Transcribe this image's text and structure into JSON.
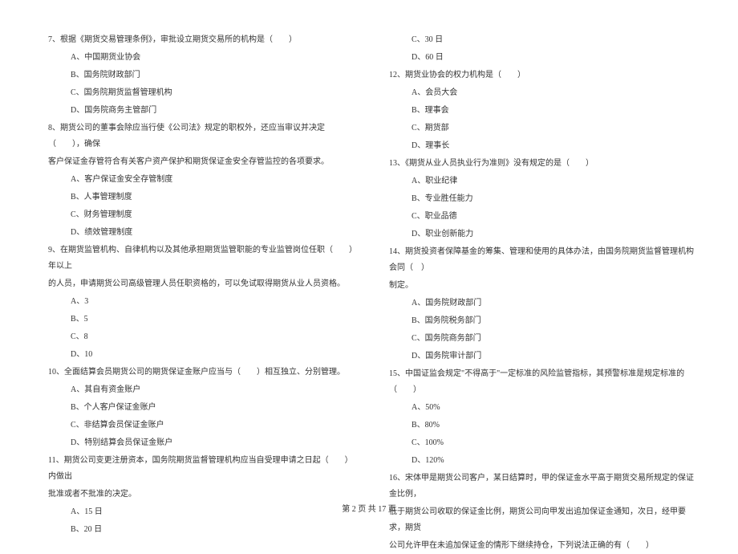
{
  "font_size": 10,
  "text_color": "#333333",
  "background_color": "#ffffff",
  "line_height": 2.0,
  "left_column": {
    "items": [
      {
        "type": "q",
        "text": "7、根据《期货交易管理条例》，审批设立期货交易所的机构是（　　）"
      },
      {
        "type": "o",
        "text": "A、中国期货业协会"
      },
      {
        "type": "o",
        "text": "B、国务院财政部门"
      },
      {
        "type": "o",
        "text": "C、国务院期货监督管理机构"
      },
      {
        "type": "o",
        "text": "D、国务院商务主管部门"
      },
      {
        "type": "q",
        "text": "8、期货公司的董事会除应当行使《公司法》规定的职权外，还应当审议并决定（　　），确保"
      },
      {
        "type": "q",
        "text": "客户保证金存管符合有关客户资产保护和期货保证金安全存管监控的各项要求。"
      },
      {
        "type": "o",
        "text": "A、客户保证金安全存管制度"
      },
      {
        "type": "o",
        "text": "B、人事管理制度"
      },
      {
        "type": "o",
        "text": "C、财务管理制度"
      },
      {
        "type": "o",
        "text": "D、绩效管理制度"
      },
      {
        "type": "q",
        "text": "9、在期货监管机构、自律机构以及其他承担期货监管职能的专业监管岗位任职（　　）年以上"
      },
      {
        "type": "q",
        "text": "的人员，申请期货公司高级管理人员任职资格的，可以免试取得期货从业人员资格。"
      },
      {
        "type": "o",
        "text": "A、3"
      },
      {
        "type": "o",
        "text": "B、5"
      },
      {
        "type": "o",
        "text": "C、8"
      },
      {
        "type": "o",
        "text": "D、10"
      },
      {
        "type": "q",
        "text": "10、全面结算会员期货公司的期货保证金账户应当与（　　）相互独立、分别管理。"
      },
      {
        "type": "o",
        "text": "A、其自有资金账户"
      },
      {
        "type": "o",
        "text": "B、个人客户保证金账户"
      },
      {
        "type": "o",
        "text": "C、非结算会员保证金账户"
      },
      {
        "type": "o",
        "text": "D、特别结算会员保证金账户"
      },
      {
        "type": "q",
        "text": "11、期货公司变更注册资本，国务院期货监督管理机构应当自受理申请之日起（　　）内做出"
      },
      {
        "type": "q",
        "text": "批准或者不批准的决定。"
      },
      {
        "type": "o",
        "text": "A、15 日"
      },
      {
        "type": "o",
        "text": "B、20 日"
      }
    ]
  },
  "right_column": {
    "items": [
      {
        "type": "o",
        "text": "C、30 日"
      },
      {
        "type": "o",
        "text": "D、60 日"
      },
      {
        "type": "q",
        "text": "12、期货业协会的权力机构是（　　）"
      },
      {
        "type": "o",
        "text": "A、会员大会"
      },
      {
        "type": "o",
        "text": "B、理事会"
      },
      {
        "type": "o",
        "text": "C、期货部"
      },
      {
        "type": "o",
        "text": "D、理事长"
      },
      {
        "type": "q",
        "text": "13、《期货从业人员执业行为准则》没有规定的是（　　）"
      },
      {
        "type": "o",
        "text": "A、职业纪律"
      },
      {
        "type": "o",
        "text": "B、专业胜任能力"
      },
      {
        "type": "o",
        "text": "C、职业品德"
      },
      {
        "type": "o",
        "text": "D、职业创新能力"
      },
      {
        "type": "q",
        "text": "14、期货投资者保障基金的筹集、管理和使用的具体办法，由国务院期货监督管理机构会同（　）"
      },
      {
        "type": "q",
        "text": "制定。"
      },
      {
        "type": "o",
        "text": "A、国务院财政部门"
      },
      {
        "type": "o",
        "text": "B、国务院税务部门"
      },
      {
        "type": "o",
        "text": "C、国务院商务部门"
      },
      {
        "type": "o",
        "text": "D、国务院审计部门"
      },
      {
        "type": "q",
        "text": "15、中国证监会规定\"不得高于\"一定标准的风险监管指标，其预警标准是规定标准的（　　）"
      },
      {
        "type": "o",
        "text": "A、50%"
      },
      {
        "type": "o",
        "text": "B、80%"
      },
      {
        "type": "o",
        "text": "C、100%"
      },
      {
        "type": "o",
        "text": "D、120%"
      },
      {
        "type": "q",
        "text": "16、宋体甲是期货公司客户，某日结算时，甲的保证金水平高于期货交易所规定的保证金比例，"
      },
      {
        "type": "q",
        "text": "低于期货公司收取的保证金比例，期货公司向甲发出追加保证金通知，次日，经甲要求，期货"
      },
      {
        "type": "q",
        "text": "公司允许甲在未追加保证金的情形下继续持仓，下列说法正确的有（　　）"
      }
    ]
  },
  "footer": {
    "text": "第 2 页 共 17 页"
  }
}
